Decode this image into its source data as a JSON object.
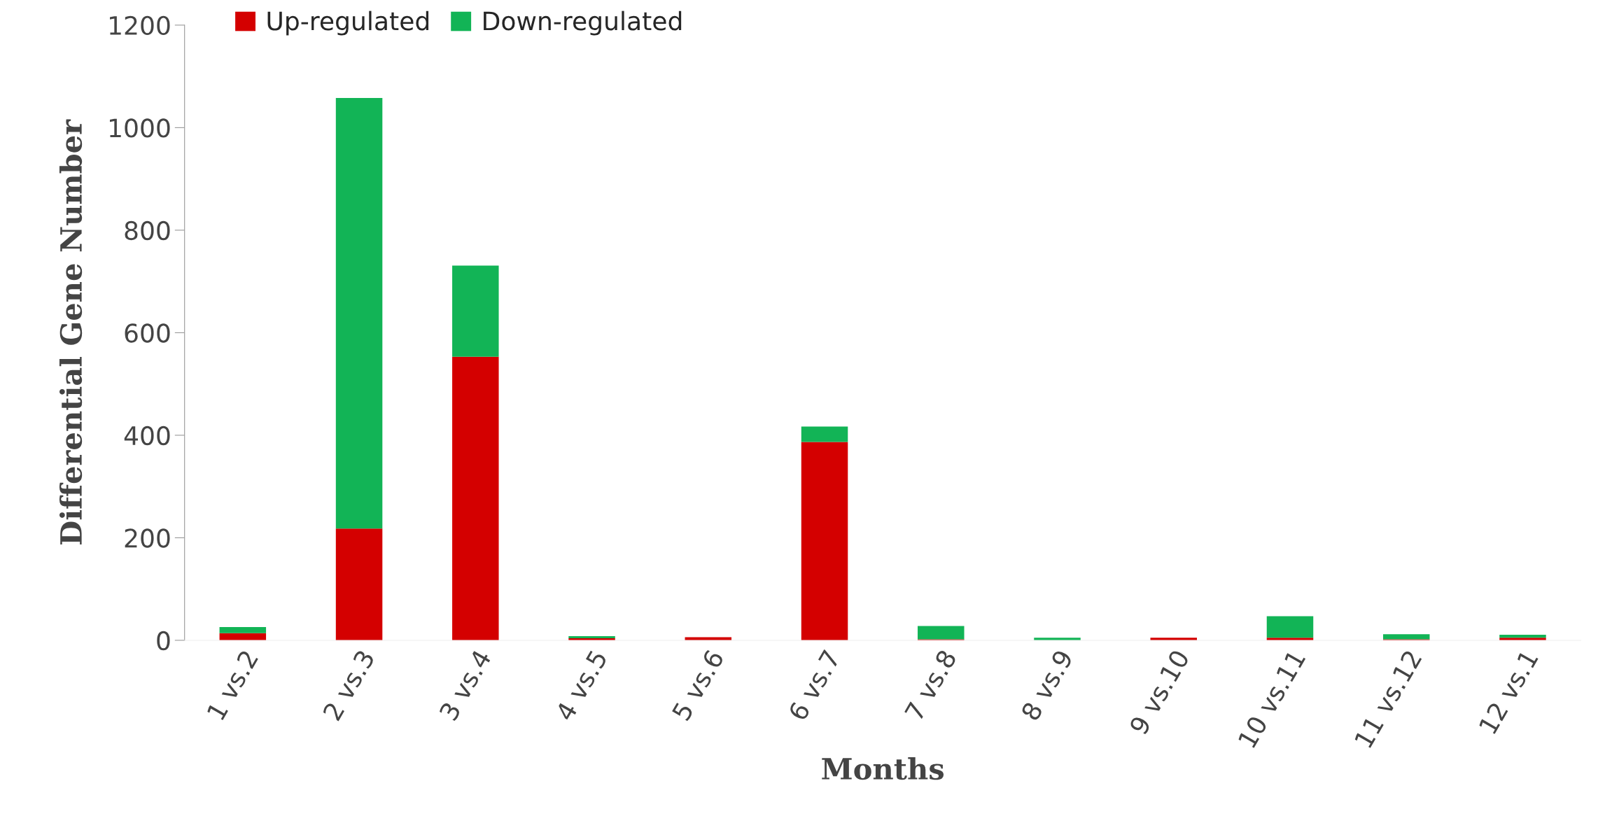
{
  "chart_data": {
    "type": "bar",
    "stacked": true,
    "xlabel": "Months",
    "ylabel": "Differential Gene Number",
    "categories": [
      "1 vs.2",
      "2 vs.3",
      "3 vs.4",
      "4 vs.5",
      "5 vs.6",
      "6 vs.7",
      "7 vs.8",
      "8 vs.9",
      "9 vs.10",
      "10 vs.11",
      "11 vs.12",
      "12 vs.1"
    ],
    "series": [
      {
        "name": "Up-regulated",
        "color": "#d40000",
        "values": [
          14,
          218,
          553,
          4,
          6,
          387,
          2,
          0,
          5,
          5,
          2,
          5
        ]
      },
      {
        "name": "Down-regulated",
        "color": "#12b456",
        "values": [
          12,
          840,
          178,
          4,
          0,
          30,
          26,
          5,
          0,
          42,
          10,
          6
        ]
      }
    ],
    "ylim": [
      0,
      1200
    ],
    "yticks": [
      0,
      200,
      400,
      600,
      800,
      1000,
      1200
    ],
    "grid": false,
    "legend": "top left"
  }
}
